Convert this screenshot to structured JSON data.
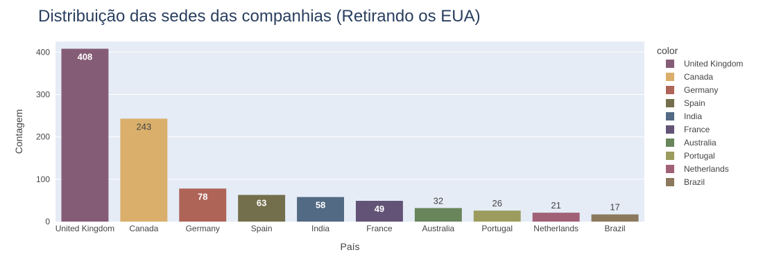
{
  "chart_data": {
    "type": "bar",
    "title": "Distribuição das sedes das companhias (Retirando os EUA)",
    "xlabel": "País",
    "ylabel": "Contagem",
    "ylim": [
      0,
      425
    ],
    "yticks": [
      0,
      100,
      200,
      300,
      400
    ],
    "grid": true,
    "legend_title": "color",
    "legend_placement": "right",
    "categories": [
      "United Kingdom",
      "Canada",
      "Germany",
      "Spain",
      "India",
      "France",
      "Australia",
      "Portugal",
      "Netherlands",
      "Brazil"
    ],
    "values": [
      408,
      243,
      78,
      63,
      58,
      49,
      32,
      26,
      21,
      17
    ],
    "colors": [
      "#855C75",
      "#D9AF6B",
      "#AF6458",
      "#736F4C",
      "#526A83",
      "#625377",
      "#68855C",
      "#9C9C5E",
      "#A06177",
      "#8C785D"
    ],
    "label_positions": [
      "inside",
      "inside",
      "inside",
      "inside",
      "inside",
      "inside",
      "outside",
      "outside",
      "outside",
      "outside"
    ],
    "label_colors": [
      "#ffffff",
      "#444444",
      "#ffffff",
      "#ffffff",
      "#ffffff",
      "#ffffff",
      "#444444",
      "#444444",
      "#444444",
      "#444444"
    ],
    "plot_bg": "#E5ECF6",
    "grid_color": "#ffffff"
  }
}
